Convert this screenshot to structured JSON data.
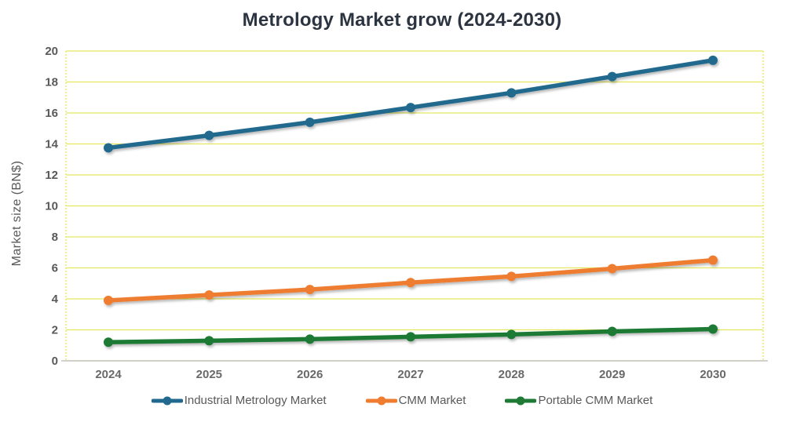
{
  "title": "Metrology Market grow (2024-2030)",
  "colors": {
    "title_text": "#2b3440",
    "axis_text": "#595959",
    "gridline": "#e5e75f",
    "plot_border": "#e5e75f",
    "axis_line": "#c4c4c4",
    "background": "#ffffff"
  },
  "chart_data": {
    "type": "line",
    "title": "Metrology Market grow (2024-2030)",
    "xlabel": "",
    "ylabel": "Market size (BN$)",
    "categories": [
      "2024",
      "2025",
      "2026",
      "2027",
      "2028",
      "2029",
      "2030"
    ],
    "series": [
      {
        "name": "Industrial Metrology Market",
        "color": "#21698e",
        "values": [
          13.75,
          14.55,
          15.4,
          16.35,
          17.3,
          18.35,
          19.4
        ]
      },
      {
        "name": "CMM Market",
        "color": "#ee7d30",
        "values": [
          3.9,
          4.25,
          4.6,
          5.05,
          5.45,
          5.95,
          6.5
        ]
      },
      {
        "name": "Portable CMM Market",
        "color": "#1e7a35",
        "values": [
          1.2,
          1.3,
          1.4,
          1.55,
          1.7,
          1.9,
          2.05
        ]
      }
    ],
    "ylim": [
      0,
      20
    ],
    "y_tick_step": 2,
    "y_tick_labels": [
      "0",
      "2",
      "4",
      "6",
      "8",
      "10",
      "12",
      "14",
      "16",
      "18",
      "20"
    ],
    "grid": true,
    "legend_position": "bottom",
    "marker": "circle"
  }
}
